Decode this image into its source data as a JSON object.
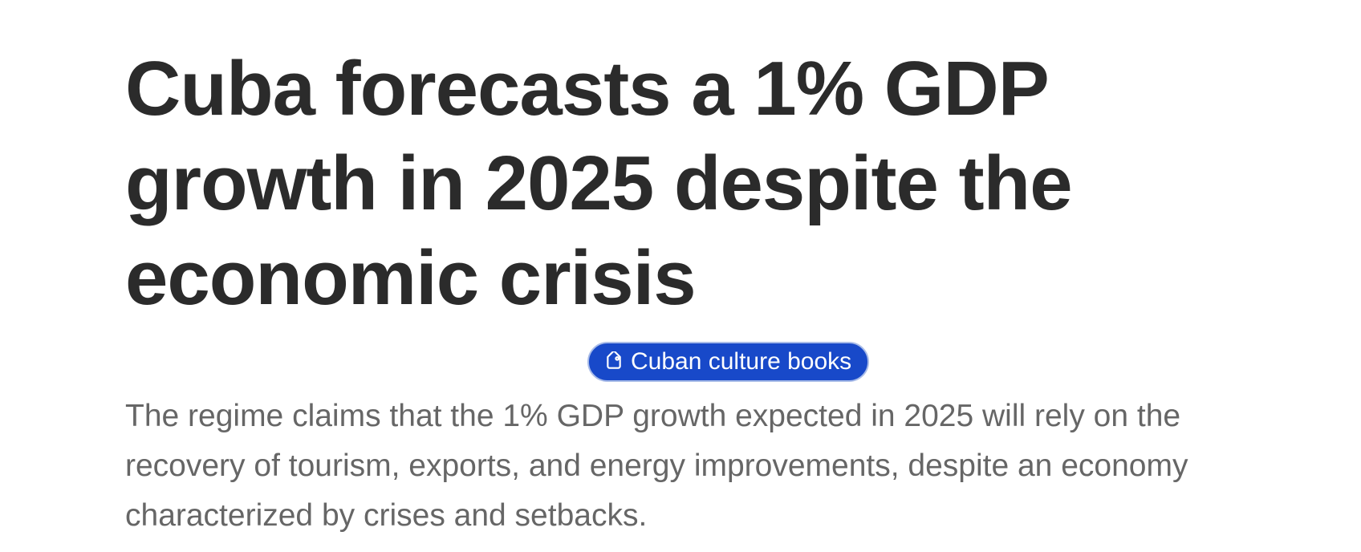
{
  "article": {
    "headline": "Cuba forecasts a 1% GDP growth in 2025 despite the economic crisis",
    "tag": {
      "label": "Cuban culture books",
      "icon": "tag-icon",
      "background": "#1849c9"
    },
    "summary": "The regime claims that the 1% GDP growth expected in 2025 will rely on the recovery of tourism, exports, and energy improvements, despite an economy characterized by crises and setbacks."
  }
}
